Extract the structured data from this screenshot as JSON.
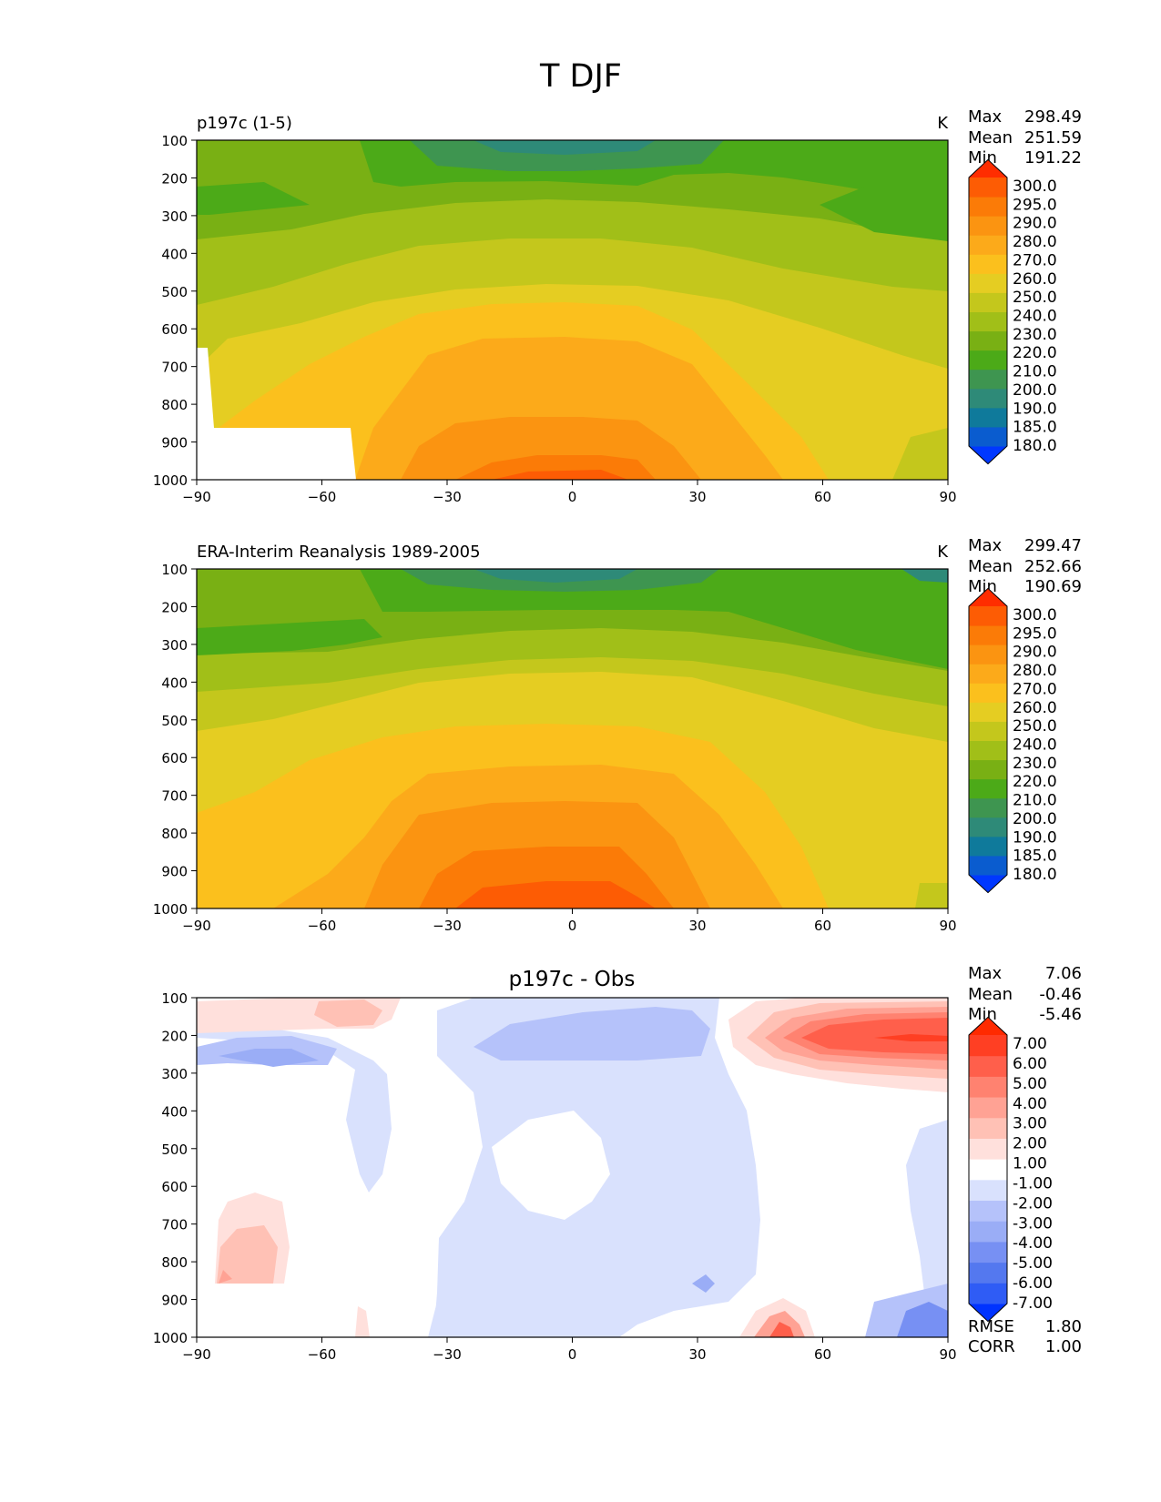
{
  "page_title": "T DJF",
  "colors": {
    "abs_levels": [
      "#0038ff",
      "#0a5ccf",
      "#0f7a9b",
      "#2e8a78",
      "#3e9550",
      "#4caa18",
      "#79b014",
      "#a1bf18",
      "#c4c71c",
      "#e5cd22",
      "#fbc01d",
      "#fcaa1a",
      "#fb9411",
      "#fb7b07",
      "#fd5c04",
      "#ff2d00"
    ],
    "diff_levels": [
      "#0033ff",
      "#2f5cf5",
      "#5478ef",
      "#7790f3",
      "#9aadf6",
      "#b5c2fa",
      "#d9e1fd",
      "#ffffff",
      "#ffe0dc",
      "#ffc1b5",
      "#ffa294",
      "#ff8270",
      "#ff5f4b",
      "#ff3f23",
      "#ff2a00"
    ]
  },
  "chart_data": [
    {
      "type": "heatmap",
      "id": "model",
      "title": "p197c (1-5)",
      "units": "K",
      "stats": [
        {
          "label": "Max",
          "value": "298.49"
        },
        {
          "label": "Mean",
          "value": "251.59"
        },
        {
          "label": "Min",
          "value": "191.22"
        }
      ],
      "xlim": [
        -90,
        90
      ],
      "ylim": [
        1000,
        100
      ],
      "xticks": [
        "−90",
        "−60",
        "−30",
        "0",
        "30",
        "60",
        "90"
      ],
      "yticks": [
        "100",
        "200",
        "300",
        "400",
        "500",
        "600",
        "700",
        "800",
        "900",
        "1000"
      ],
      "colorbar_labels": [
        "300.0",
        "295.0",
        "290.0",
        "280.0",
        "270.0",
        "260.0",
        "250.0",
        "240.0",
        "230.0",
        "220.0",
        "210.0",
        "200.0",
        "190.0",
        "185.0",
        "180.0"
      ]
    },
    {
      "type": "heatmap",
      "id": "obs",
      "title": "ERA-Interim Reanalysis 1989-2005",
      "units": "K",
      "stats": [
        {
          "label": "Max",
          "value": "299.47"
        },
        {
          "label": "Mean",
          "value": "252.66"
        },
        {
          "label": "Min",
          "value": "190.69"
        }
      ],
      "xlim": [
        -90,
        90
      ],
      "ylim": [
        1000,
        100
      ],
      "xticks": [
        "−90",
        "−60",
        "−30",
        "0",
        "30",
        "60",
        "90"
      ],
      "yticks": [
        "100",
        "200",
        "300",
        "400",
        "500",
        "600",
        "700",
        "800",
        "900",
        "1000"
      ],
      "colorbar_labels": [
        "300.0",
        "295.0",
        "290.0",
        "280.0",
        "270.0",
        "260.0",
        "250.0",
        "240.0",
        "230.0",
        "220.0",
        "210.0",
        "200.0",
        "190.0",
        "185.0",
        "180.0"
      ]
    },
    {
      "type": "heatmap",
      "id": "diff",
      "title": "p197c - Obs",
      "units": "",
      "stats": [
        {
          "label": "Max",
          "value": "7.06"
        },
        {
          "label": "Mean",
          "value": "-0.46"
        },
        {
          "label": "Min",
          "value": "-5.46"
        }
      ],
      "extra_stats": [
        {
          "label": "RMSE",
          "value": "1.80"
        },
        {
          "label": "CORR",
          "value": "1.00"
        }
      ],
      "xlim": [
        -90,
        90
      ],
      "ylim": [
        1000,
        100
      ],
      "xticks": [
        "−90",
        "−60",
        "−30",
        "0",
        "30",
        "60",
        "90"
      ],
      "yticks": [
        "100",
        "200",
        "300",
        "400",
        "500",
        "600",
        "700",
        "800",
        "900",
        "1000"
      ],
      "colorbar_labels": [
        "7.00",
        "6.00",
        "5.00",
        "4.00",
        "3.00",
        "2.00",
        "1.00",
        "-1.00",
        "-2.00",
        "-3.00",
        "-4.00",
        "-5.00",
        "-6.00",
        "-7.00"
      ]
    }
  ]
}
